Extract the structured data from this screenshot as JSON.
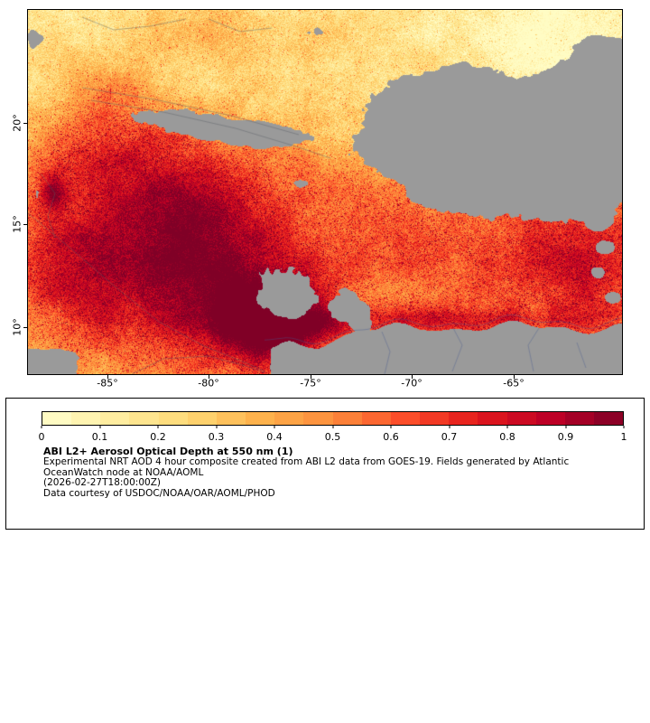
{
  "figure": {
    "map": {
      "y_tick_labels": [
        "20°",
        "15°",
        "10°"
      ],
      "x_tick_labels": [
        "-85°",
        "-80°",
        "-75°",
        "-70°",
        "-65°"
      ]
    },
    "legend": {
      "colorbar_ticks": [
        "0",
        "0.1",
        "0.2",
        "0.3",
        "0.4",
        "0.5",
        "0.6",
        "0.7",
        "0.8",
        "0.9",
        "1"
      ],
      "title": "ABI L2+ Aerosol Optical Depth at 550 nm (1)",
      "description_line1": "Experimental NRT AOD 4 hour composite created from ABI L2 data from GOES-19. Fields generated by Atlantic",
      "description_line2": "OceanWatch node at NOAA/AOML",
      "timestamp": "(2026-02-27T18:00:00Z)",
      "credit": "Data courtesy of USDOC/NOAA/OAR/AOML/PHOD"
    }
  },
  "chart_data": {
    "type": "heatmap",
    "title": "ABI L2+ Aerosol Optical Depth at 550 nm (1)",
    "subtitle": "Experimental NRT AOD 4 hour composite created from ABI L2 data from GOES-19. Fields generated by Atlantic OceanWatch node at NOAA/AOML",
    "timestamp": "(2026-02-27T18:00:00Z)",
    "credit": "Data courtesy of USDOC/NOAA/OAR/AOML/PHOD",
    "x_axis": {
      "tick_labels": [
        "-85°",
        "-80°",
        "-75°",
        "-70°",
        "-65°"
      ],
      "tick_values": [
        -85,
        -80,
        -75,
        -70,
        -65
      ],
      "range": [
        -89,
        -59.6
      ]
    },
    "y_axis": {
      "tick_labels": [
        "20°",
        "15°",
        "10°"
      ],
      "tick_values": [
        20,
        15,
        10
      ],
      "range": [
        7.6,
        25.6
      ]
    },
    "colorbar": {
      "range": [
        0,
        1
      ],
      "tick_values": [
        0,
        0.1,
        0.2,
        0.3,
        0.4,
        0.5,
        0.6,
        0.7,
        0.8,
        0.9,
        1
      ],
      "colormap": "YlOrRd",
      "colors": [
        "#ffffcc",
        "#ffeda0",
        "#fed976",
        "#feb24c",
        "#fd8d3c",
        "#fc4e2a",
        "#e31a1c",
        "#bd0026",
        "#800026"
      ],
      "no_data_color": "#9a9a9a"
    },
    "grid": false,
    "legend_position": "bottom"
  }
}
